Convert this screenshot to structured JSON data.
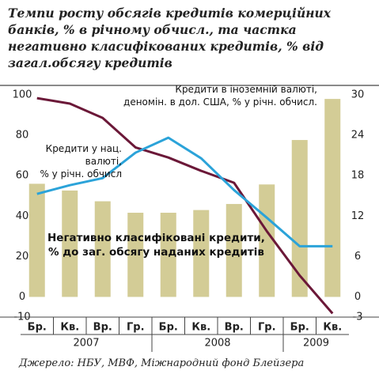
{
  "chart_data": {
    "type": "bar-line",
    "title": "Темпи росту обсягів кредитів комерційних\nбанків, % в річному обчисл., та частка\nнегативно класифікованих кредитів, % від\nзагал.обсягу кредитів",
    "categories": [
      "Бр.",
      "Кв.",
      "Вр.",
      "Гр.",
      "Бр.",
      "Кв.",
      "Вр.",
      "Гр.",
      "Бр.",
      "Кв."
    ],
    "years": [
      "2007",
      "2008",
      "2009"
    ],
    "series": [
      {
        "name": "Негативно класифіковані кредити,\n% до заг. обсягу наданих кредитів",
        "kind": "bar",
        "axis": "y2",
        "color": "#d3cc96",
        "values": [
          16.8,
          15.8,
          14.2,
          12.5,
          12.5,
          12.9,
          13.8,
          16.7,
          23.3,
          29.4
        ]
      },
      {
        "name": "Кредити в іноземній валюті,\nденомін. в дол. США, % у річн. обчисл.",
        "kind": "line",
        "axis": "y",
        "color": "#6b1838",
        "values": [
          98.4,
          95.7,
          88.6,
          74,
          69,
          62.4,
          56.5,
          32.5,
          10.6,
          -8.2
        ]
      },
      {
        "name": "Кредити у нац. валюті,\n% у річн. обчисл",
        "kind": "line",
        "axis": "y",
        "color": "#2ba3d9",
        "values": [
          51,
          55.3,
          58.8,
          71.4,
          78.8,
          68.6,
          52.9,
          39.2,
          25.1,
          25.1
        ]
      }
    ],
    "ylim": [
      -10,
      100
    ],
    "yticks": [
      -10,
      0,
      20,
      40,
      60,
      80,
      100
    ],
    "y2lim": [
      -3,
      30
    ],
    "y2ticks": [
      -3,
      0,
      6,
      12,
      18,
      24,
      30
    ],
    "grid": false,
    "source": "Джерело: НБУ, МВФ, Міжнародний фонд Блейзера"
  }
}
